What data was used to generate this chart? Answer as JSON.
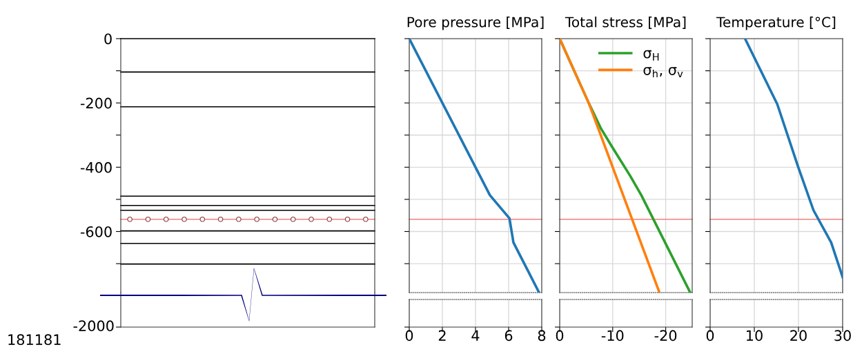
{
  "chart_data": [
    {
      "type": "scatter",
      "categories": [
        null,
        null,
        null,
        null,
        null,
        null,
        null,
        null,
        null,
        null,
        null,
        null,
        null,
        null
      ],
      "series": [
        {
          "color": "#8b3a3a",
          "values": [
            -562,
            -562,
            -562,
            -562,
            -562,
            -562,
            -562,
            -562,
            -562,
            -562,
            -562,
            -562,
            -562,
            -562
          ]
        }
      ],
      "marker": "circle",
      "ylim": [
        -790,
        0
      ],
      "yticks": [
        0,
        {
          "value": -100,
          "label": null
        },
        -200,
        {
          "value": -300,
          "label": null
        },
        -400,
        {
          "value": -500,
          "label": null
        },
        -600,
        {
          "value": -700,
          "label": null
        }
      ],
      "tick_labels": "y",
      "grid": false,
      "annotations": [
        "-2000",
        "181181"
      ],
      "ref_lines": [
        {
          "axis": "y",
          "value": -104,
          "color": "#000000"
        },
        {
          "axis": "y",
          "value": -212,
          "color": "#000000"
        },
        {
          "axis": "y",
          "value": -490,
          "color": "#000000"
        },
        {
          "axis": "y",
          "value": -519,
          "color": "#000000"
        },
        {
          "axis": "y",
          "value": -534,
          "color": "#000000"
        },
        {
          "axis": "y",
          "value": -562,
          "color": "#f08080"
        },
        {
          "axis": "y",
          "value": -598,
          "color": "#000000"
        },
        {
          "axis": "y",
          "value": -637,
          "color": "#000000"
        },
        {
          "axis": "y",
          "value": -701,
          "color": "#000000"
        }
      ]
    },
    {
      "type": "line",
      "title": "Pore pressure [MPa]",
      "xlim": [
        0,
        8
      ],
      "ylim": [
        -790,
        0
      ],
      "yticks": [
        {
          "value": 0,
          "label": null
        },
        {
          "value": -100,
          "label": null
        },
        {
          "value": -200,
          "label": null
        },
        {
          "value": -300,
          "label": null
        },
        {
          "value": -400,
          "label": null
        },
        {
          "value": -500,
          "label": null
        },
        {
          "value": -600,
          "label": null
        },
        {
          "value": -700,
          "label": null
        }
      ],
      "xticks": [
        0,
        2,
        4,
        6,
        8
      ],
      "tick_labels": "x",
      "grid": true,
      "series": [
        {
          "color": "#1f77b4",
          "x": [
            0,
            4.87,
            6.05,
            6.29,
            7.83
          ],
          "values": [
            0,
            -487,
            -559,
            -634,
            -789
          ]
        }
      ],
      "ref_lines": [
        {
          "axis": "y",
          "value": -562,
          "color": "#f08080"
        }
      ]
    },
    {
      "type": "line",
      "title": "Total stress [MPa]",
      "xlim": [
        0,
        -25
      ],
      "ylim": [
        -790,
        0
      ],
      "yticks": [
        {
          "value": 0,
          "label": null
        },
        {
          "value": -100,
          "label": null
        },
        {
          "value": -200,
          "label": null
        },
        {
          "value": -300,
          "label": null
        },
        {
          "value": -400,
          "label": null
        },
        {
          "value": -500,
          "label": null
        },
        {
          "value": -600,
          "label": null
        },
        {
          "value": -700,
          "label": null
        }
      ],
      "xticks": [
        0,
        -10,
        -20
      ],
      "tick_labels": "x",
      "grid": true,
      "legend": "top right",
      "series": [
        {
          "name": "σ$_{H}$",
          "color": "#2ca02c",
          "x": [
            0,
            -5.5,
            -7.8,
            -9.9,
            -13.3,
            -15.4,
            -24.6
          ],
          "values": [
            0,
            -201,
            -280,
            -337,
            -427,
            -487,
            -789
          ]
        },
        {
          "name": "σ$_{h}$, σ$_{v}$",
          "color": "#ff7f0e",
          "x": [
            0,
            -5.5,
            -18.8
          ],
          "values": [
            0,
            -201,
            -789
          ]
        }
      ],
      "ref_lines": [
        {
          "axis": "y",
          "value": -562,
          "color": "#f08080"
        }
      ]
    },
    {
      "type": "line",
      "title": "Temperature [°C]",
      "xlim": [
        0,
        30
      ],
      "ylim": [
        -790,
        0
      ],
      "yticks": [
        {
          "value": 0,
          "label": null
        },
        {
          "value": -100,
          "label": null
        },
        {
          "value": -200,
          "label": null
        },
        {
          "value": -300,
          "label": null
        },
        {
          "value": -400,
          "label": null
        },
        {
          "value": -500,
          "label": null
        },
        {
          "value": -600,
          "label": null
        },
        {
          "value": -700,
          "label": null
        }
      ],
      "xticks": [
        0,
        10,
        20,
        30
      ],
      "tick_labels": "x",
      "grid": true,
      "series": [
        {
          "color": "#1f77b4",
          "x": [
            7.9,
            15.2,
            19.9,
            23.4,
            27.4,
            30
          ],
          "values": [
            0,
            -204,
            -398,
            -534,
            -634,
            -742
          ]
        }
      ],
      "ref_lines": [
        {
          "axis": "y",
          "value": -562,
          "color": "#f08080"
        }
      ]
    }
  ]
}
